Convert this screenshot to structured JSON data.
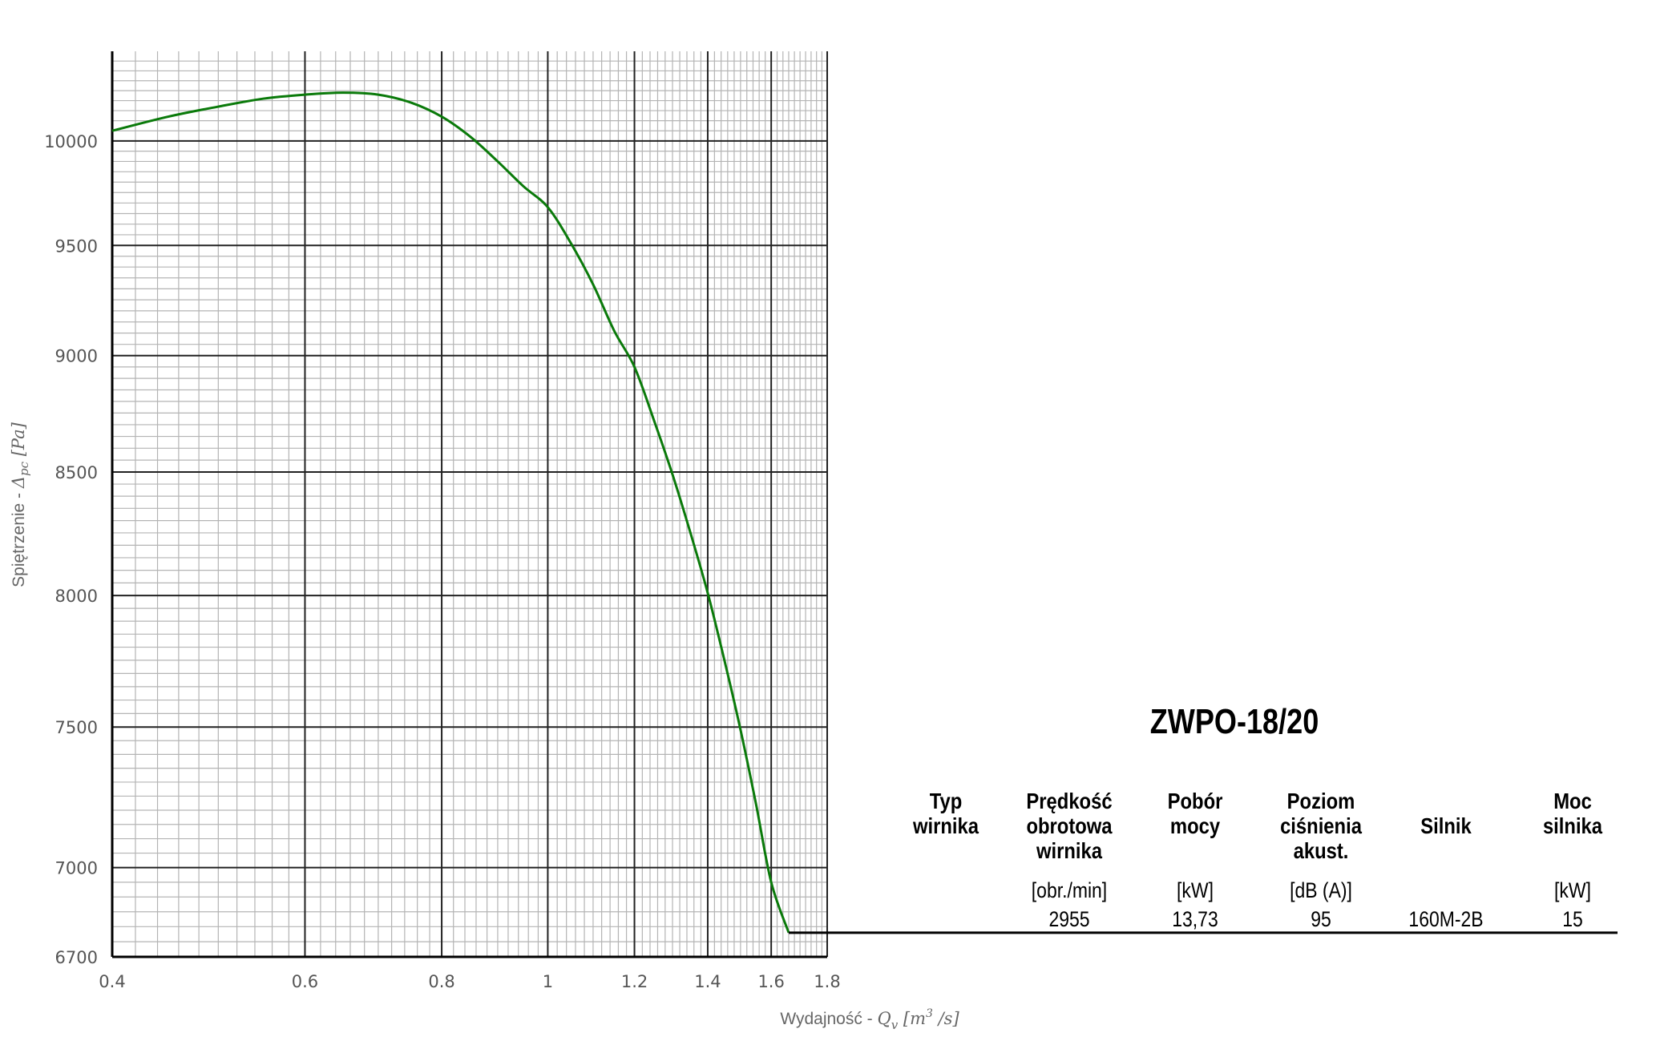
{
  "chart_data": {
    "type": "line",
    "x_axis": {
      "label": "Wydajność - ",
      "label_math": "Q",
      "label_sub": "v",
      "label_unit_open": " [m",
      "label_unit_sup": "3",
      "label_unit_close": " /s]",
      "scale": "log",
      "range": [
        0.4,
        1.8
      ],
      "ticks": [
        0.4,
        0.6,
        0.8,
        1,
        1.2,
        1.4,
        1.6,
        1.8
      ],
      "tick_labels": [
        "0.4",
        "0.6",
        "0.8",
        "1",
        "1.2",
        "1.4",
        "1.6",
        "1.8"
      ]
    },
    "y_axis": {
      "label": "Spiętrzenie - ",
      "label_math": "Δ",
      "label_sub": "pc",
      "label_unit": " [Pa]",
      "scale": "log",
      "range": [
        6700,
        10450
      ],
      "ticks": [
        6700,
        7000,
        7500,
        8000,
        8500,
        9000,
        9500,
        10000
      ],
      "tick_labels": [
        "6700",
        "7000",
        "7500",
        "8000",
        "8500",
        "9000",
        "9500",
        "10000"
      ]
    },
    "grid": true,
    "series": [
      {
        "color": "#0a7a0a",
        "x": [
          0.4,
          0.45,
          0.5,
          0.55,
          0.6,
          0.65,
          0.7,
          0.75,
          0.8,
          0.85,
          0.9,
          0.95,
          1.0,
          1.05,
          1.1,
          1.15,
          1.2,
          1.25,
          1.3,
          1.35,
          1.4,
          1.45,
          1.5,
          1.55,
          1.6,
          1.66
        ],
        "y": [
          10050,
          10120,
          10170,
          10210,
          10230,
          10240,
          10230,
          10190,
          10120,
          10020,
          9900,
          9780,
          9680,
          9510,
          9320,
          9110,
          8950,
          8720,
          8490,
          8250,
          8010,
          7750,
          7490,
          7220,
          6950,
          6780
        ]
      }
    ]
  },
  "fan_table": {
    "model": "ZWPO-18/20",
    "headers": [
      "Typ\nwirnika",
      "Prędkość\nobrotowa\nwirnika",
      "Pobór\nmocy",
      "Poziom\nciśnienia\nakust.",
      "Silnik",
      "Moc\nsilnika"
    ],
    "units": [
      "",
      "[obr./min]",
      "[kW]",
      "[dB (A)]",
      "",
      "[kW]"
    ],
    "values": [
      "",
      "2955",
      "13,73",
      "95",
      "160M-2B",
      "15"
    ]
  }
}
